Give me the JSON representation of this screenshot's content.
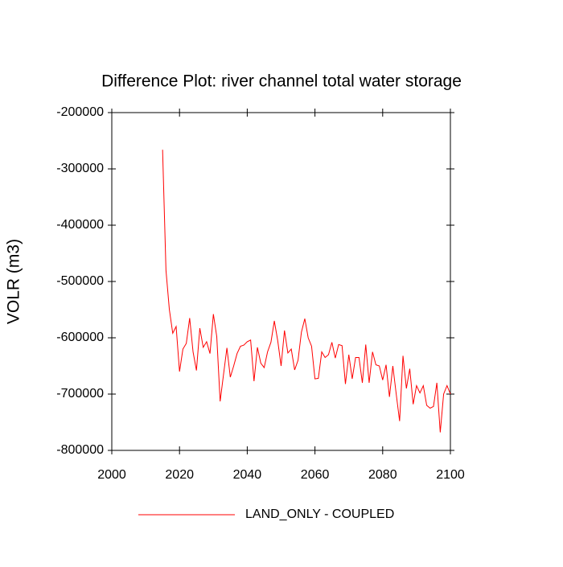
{
  "chart_data": {
    "type": "line",
    "title": "Difference Plot: river channel total water storage",
    "y_label": "VOLR  (m3)",
    "x": [
      2015,
      2016,
      2017,
      2018,
      2019,
      2020,
      2021,
      2022,
      2023,
      2024,
      2025,
      2026,
      2027,
      2028,
      2029,
      2030,
      2031,
      2032,
      2033,
      2034,
      2035,
      2036,
      2037,
      2038,
      2039,
      2040,
      2041,
      2042,
      2043,
      2044,
      2045,
      2046,
      2047,
      2048,
      2049,
      2050,
      2051,
      2052,
      2053,
      2054,
      2055,
      2056,
      2057,
      2058,
      2059,
      2060,
      2061,
      2062,
      2063,
      2064,
      2065,
      2066,
      2067,
      2068,
      2069,
      2070,
      2071,
      2072,
      2073,
      2074,
      2075,
      2076,
      2077,
      2078,
      2079,
      2080,
      2081,
      2082,
      2083,
      2084,
      2085,
      2086,
      2087,
      2088,
      2089,
      2090,
      2091,
      2092,
      2093,
      2094,
      2095,
      2096,
      2097,
      2098,
      2099,
      2100
    ],
    "series": [
      {
        "name": "LAND_ONLY - COUPLED",
        "color": "#ff0000",
        "values": [
          -266000,
          -480000,
          -550000,
          -592000,
          -580000,
          -660000,
          -620000,
          -610000,
          -565000,
          -625000,
          -658000,
          -583000,
          -617000,
          -607000,
          -628000,
          -558000,
          -598000,
          -713000,
          -665000,
          -618000,
          -670000,
          -650000,
          -628000,
          -615000,
          -613000,
          -607000,
          -604000,
          -677000,
          -617000,
          -645000,
          -653000,
          -625000,
          -608000,
          -570000,
          -605000,
          -650000,
          -587000,
          -627000,
          -620000,
          -657000,
          -640000,
          -590000,
          -566000,
          -600000,
          -615000,
          -673000,
          -672000,
          -625000,
          -635000,
          -630000,
          -608000,
          -636000,
          -612000,
          -614000,
          -682000,
          -630000,
          -673000,
          -635000,
          -635000,
          -680000,
          -612000,
          -680000,
          -625000,
          -648000,
          -650000,
          -675000,
          -648000,
          -705000,
          -650000,
          -700000,
          -748000,
          -632000,
          -690000,
          -655000,
          -718000,
          -685000,
          -698000,
          -685000,
          -720000,
          -725000,
          -722000,
          -680000,
          -768000,
          -700000,
          -685000,
          -700000
        ]
      }
    ],
    "xlim": [
      2000,
      2100
    ],
    "xticks": [
      2000,
      2020,
      2040,
      2060,
      2080,
      2100
    ],
    "ylim": [
      -800000,
      -200000
    ],
    "yticks": [
      -800000,
      -700000,
      -600000,
      -500000,
      -400000,
      -300000,
      -200000
    ]
  }
}
